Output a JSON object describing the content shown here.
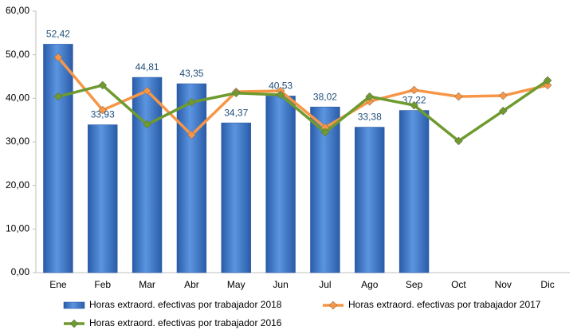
{
  "chart_data": {
    "type": "bar_line",
    "categories": [
      "Ene",
      "Feb",
      "Mar",
      "Abr",
      "May",
      "Jun",
      "Jul",
      "Ago",
      "Sep",
      "Oct",
      "Nov",
      "Dic"
    ],
    "series": [
      {
        "name": "Horas extraord. efectivas por trabajador 2018",
        "type": "bar",
        "color": "#3a73c4",
        "values": [
          52.42,
          33.93,
          44.81,
          43.35,
          34.37,
          40.53,
          38.02,
          33.38,
          37.22,
          null,
          null,
          null
        ],
        "value_labels": [
          "52,42",
          "33,93",
          "44,81",
          "43,35",
          "34,37",
          "40,53",
          "38,02",
          "33,38",
          "37,22",
          null,
          null,
          null
        ]
      },
      {
        "name": "Horas extraord. efectivas por trabajador 2017",
        "type": "line",
        "color": "#f79646",
        "values": [
          49.4,
          37.3,
          41.7,
          31.6,
          41.5,
          41.7,
          33.3,
          39.3,
          41.9,
          40.4,
          40.6,
          43.0
        ]
      },
      {
        "name": "Horas extraord. efectivas por trabajador 2016",
        "type": "line",
        "color": "#6e9a2f",
        "values": [
          40.4,
          43.0,
          34.0,
          39.1,
          41.2,
          40.8,
          32.2,
          40.4,
          38.4,
          30.2,
          37.1,
          44.1
        ]
      }
    ],
    "ylim": [
      0,
      60
    ],
    "yticks": [
      {
        "value": 0,
        "label": "0,00"
      },
      {
        "value": 10,
        "label": "10,00"
      },
      {
        "value": 20,
        "label": "20,00"
      },
      {
        "value": 30,
        "label": "30,00"
      },
      {
        "value": 40,
        "label": "40,00"
      },
      {
        "value": 50,
        "label": "50,00"
      },
      {
        "value": 60,
        "label": "60,00"
      }
    ],
    "grid": false,
    "legend": "bottom"
  }
}
